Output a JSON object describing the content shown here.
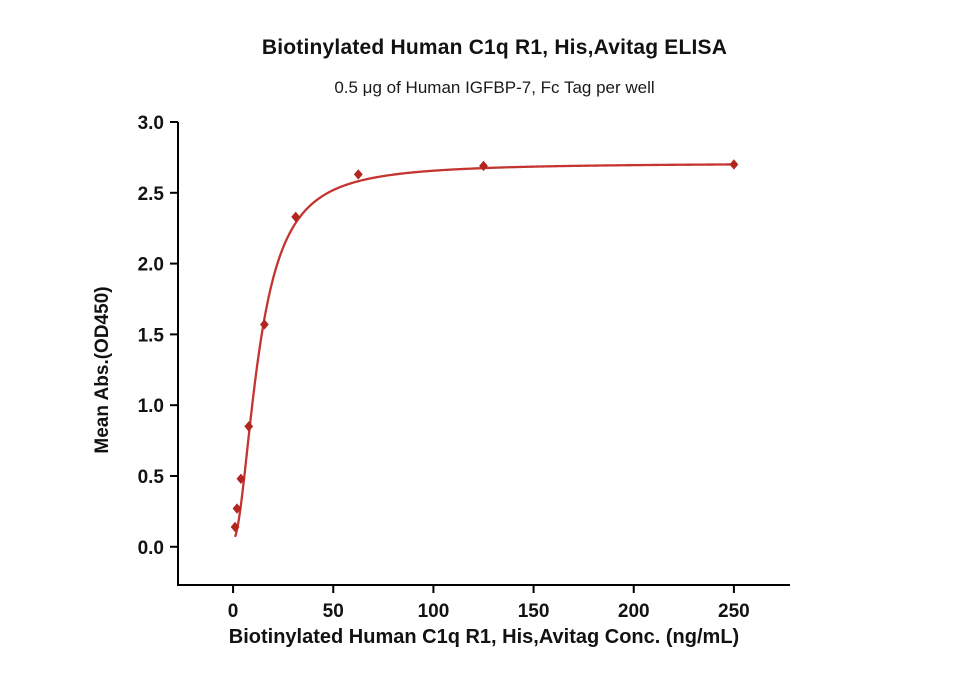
{
  "chart_data": {
    "type": "scatter",
    "title": "Biotinylated Human C1q R1, His,Avitag ELISA",
    "subtitle": "0.5 μg of Human IGFBP-7, Fc Tag per well",
    "xlabel": "Biotinylated Human C1q R1, His,Avitag Conc. (ng/mL)",
    "ylabel": "Mean Abs.(OD450)",
    "axis": {
      "xlim": [
        -27.5,
        278
      ],
      "ylim": [
        -0.27,
        3.0
      ],
      "x_ticks": [
        0,
        50,
        100,
        150,
        200,
        250
      ],
      "x_tick_labels": [
        "0",
        "50",
        "100",
        "150",
        "200",
        "250"
      ],
      "y_ticks": [
        0,
        0.5,
        1.0,
        1.5,
        2.0,
        2.5,
        3.0
      ],
      "y_tick_labels": [
        "0.0",
        "0.5",
        "1.0",
        "1.5",
        "2.0",
        "2.5",
        "3.0"
      ],
      "grid": false,
      "legend": "none"
    },
    "series": [
      {
        "name": "Biotinylated Human C1q R1, His,Avitag",
        "marker": "diamond",
        "marker_color": "#b2261f",
        "line_color": "#c43430",
        "x": [
          0.98,
          1.95,
          3.91,
          7.81,
          15.63,
          31.25,
          62.5,
          125,
          250
        ],
        "y": [
          0.14,
          0.27,
          0.48,
          0.85,
          1.57,
          2.33,
          2.63,
          2.69,
          2.7
        ]
      }
    ],
    "fit_curve": {
      "model": "4PL",
      "bottom": 0.05,
      "top": 2.71,
      "ec50": 13,
      "hill": 1.9,
      "x_start": 1.0,
      "x_end": 250
    }
  },
  "colors": {
    "background": "#ffffff",
    "axis": "#000000",
    "text": "#121212"
  }
}
